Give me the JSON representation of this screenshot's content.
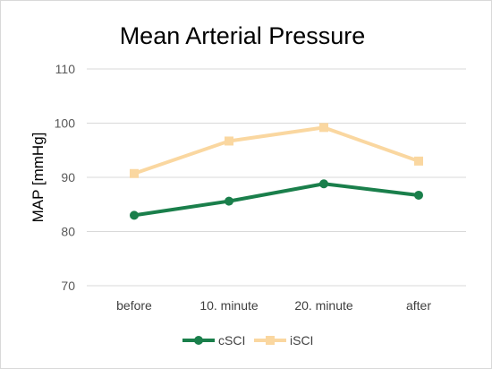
{
  "chart_data": {
    "type": "line",
    "title": "Mean Arterial Pressure",
    "xlabel": "",
    "ylabel": "MAP [mmHg]",
    "categories": [
      "before",
      "10. minute",
      "20. minute",
      "after"
    ],
    "ylim": [
      70,
      110
    ],
    "yticks": [
      70,
      80,
      90,
      100,
      110
    ],
    "grid": true,
    "legend": "bottom",
    "series": [
      {
        "name": "cSCI",
        "values": [
          83.0,
          85.6,
          88.8,
          86.7
        ],
        "color": "#1a7f4b",
        "marker": "circle"
      },
      {
        "name": "iSCI",
        "values": [
          90.7,
          96.7,
          99.2,
          93.0
        ],
        "color": "#fad7a0",
        "marker": "square"
      }
    ]
  }
}
